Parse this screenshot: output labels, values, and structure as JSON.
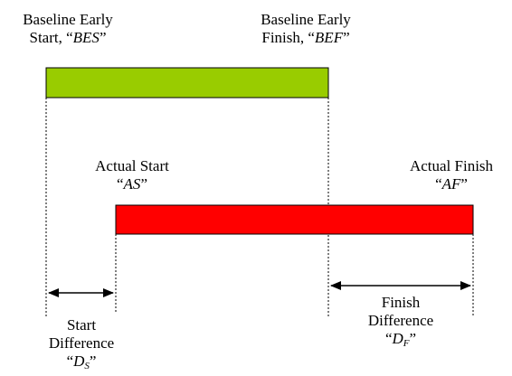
{
  "labels": {
    "baseline_start": {
      "line1": "Baseline Early",
      "line2_pre": "Start, “",
      "line2_var": "BES",
      "line2_post": "”"
    },
    "baseline_finish": {
      "line1": "Baseline Early",
      "line2_pre": "Finish, “",
      "line2_var": "BEF",
      "line2_post": "”"
    },
    "actual_start": {
      "line1": "Actual Start",
      "line2_pre": "“",
      "line2_var": "AS",
      "line2_post": "”"
    },
    "actual_finish": {
      "line1": "Actual Finish",
      "line2_pre": "“",
      "line2_var": "AF",
      "line2_post": "”"
    },
    "start_difference": {
      "line1": "Start",
      "line2": "Difference",
      "line3_pre": "“",
      "line3_var": "D",
      "line3_sub": "S",
      "line3_post": "”"
    },
    "finish_difference": {
      "line1": "Finish",
      "line2": "Difference",
      "line3_pre": "“",
      "line3_var": "D",
      "line3_sub": "F",
      "line3_post": "”"
    }
  },
  "colors": {
    "baseline_bar": "#99cc00",
    "actual_bar": "#ff0000",
    "outline": "#000000"
  }
}
